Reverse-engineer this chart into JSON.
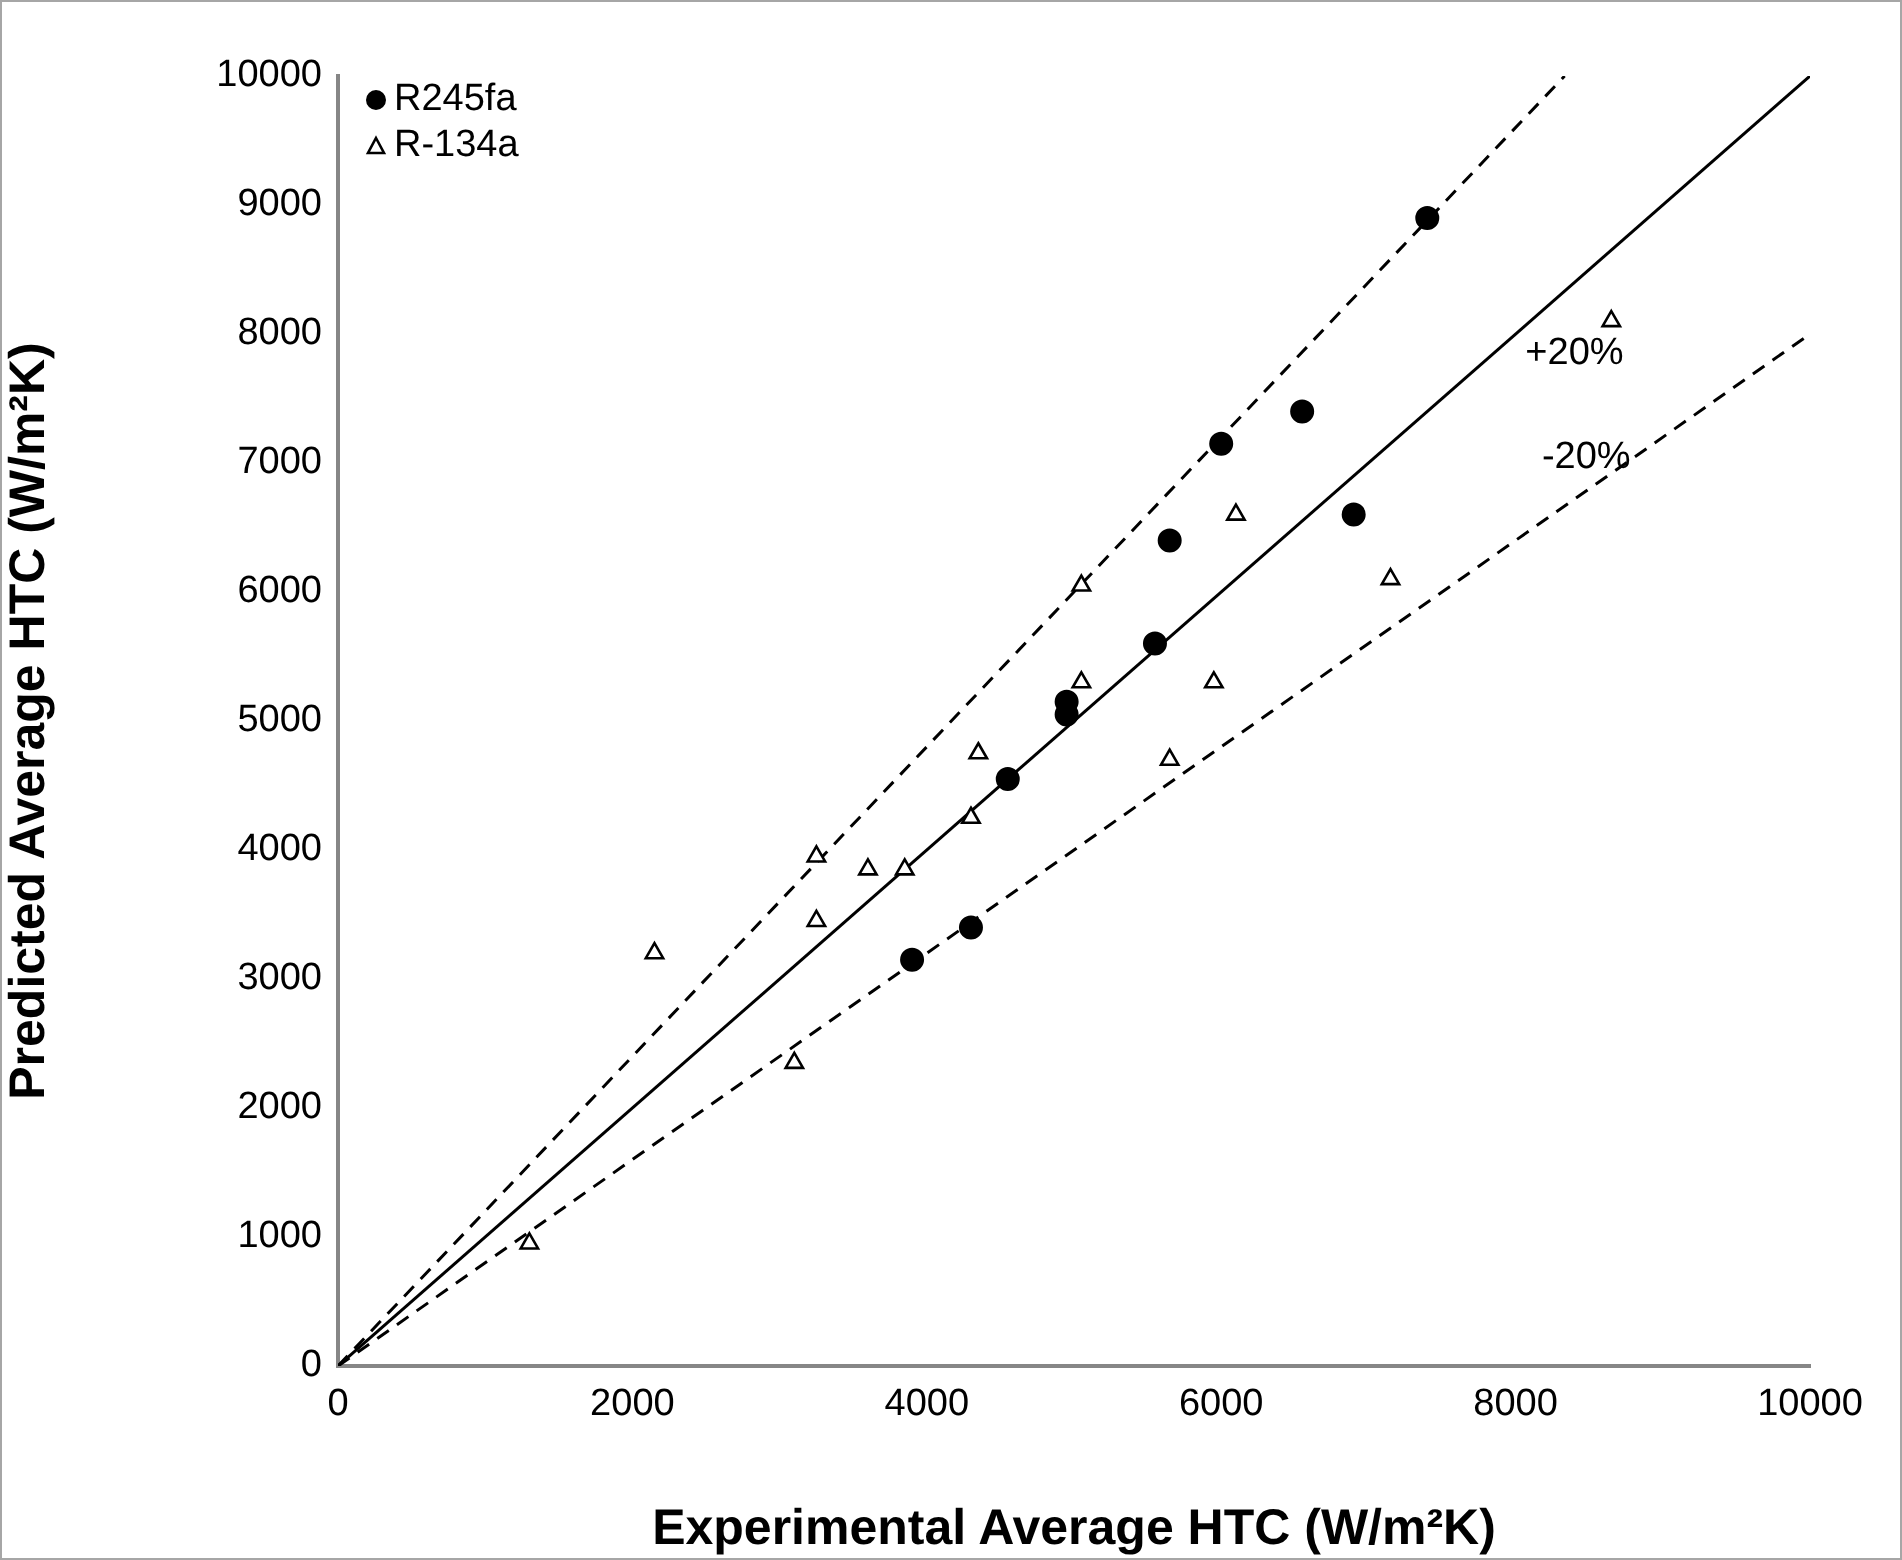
{
  "chart_data": {
    "type": "scatter",
    "xlabel": "Experimental Average HTC (W/m²K)",
    "ylabel": "Predicted Average HTC (W/m²K)",
    "xlim": [
      0,
      10000
    ],
    "ylim": [
      0,
      10000
    ],
    "xticks": [
      0,
      2000,
      4000,
      6000,
      8000,
      10000
    ],
    "yticks": [
      0,
      1000,
      2000,
      3000,
      4000,
      5000,
      6000,
      7000,
      8000,
      9000,
      10000
    ],
    "grid": false,
    "legend": "top left",
    "series": [
      {
        "name": "R245fa",
        "marker": "circle",
        "color": "#000000",
        "x": [
          7400,
          6000,
          6550,
          5650,
          6900,
          5550,
          4950,
          4950,
          4550,
          4300,
          3900
        ],
        "values": [
          8900,
          7150,
          7400,
          6400,
          6600,
          5600,
          5150,
          5050,
          4550,
          3400,
          3150
        ]
      },
      {
        "name": "R-134a",
        "marker": "triangle",
        "color": "#000000",
        "x": [
          8650,
          6100,
          5050,
          7150,
          5050,
          5950,
          5650,
          4350,
          4300,
          3250,
          3600,
          3850,
          3250,
          2150,
          3100,
          1300
        ],
        "values": [
          8100,
          6600,
          6050,
          6100,
          5300,
          5300,
          4700,
          4750,
          4250,
          3950,
          3850,
          3850,
          3450,
          3200,
          2350,
          950
        ]
      },
      {
        "type": "line",
        "line_style": "solid",
        "color": "#000000",
        "x": [
          0,
          10000
        ],
        "values": [
          0,
          10000
        ]
      },
      {
        "type": "line",
        "line_style": "dashed",
        "color": "#000000",
        "x": [
          0,
          8333
        ],
        "values": [
          0,
          10000
        ]
      },
      {
        "type": "line",
        "line_style": "dashed",
        "color": "#000000",
        "x": [
          0,
          10000
        ],
        "values": [
          0,
          8000
        ]
      }
    ],
    "annotations": [
      "+20%",
      "-20%"
    ]
  }
}
